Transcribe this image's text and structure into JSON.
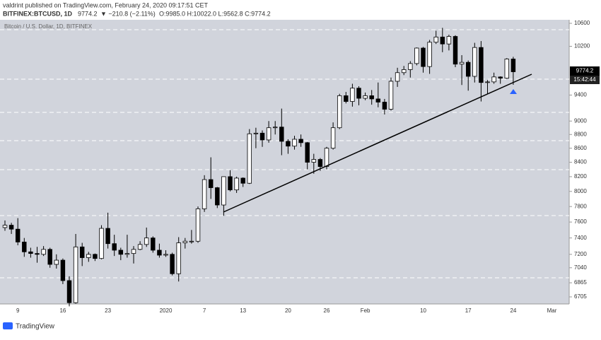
{
  "header": {
    "publisher": "valdrint published on TradingView.com, February 24, 2020 09:17:51 CET",
    "symbol": "BITFINEX:BTCUSD, 1D",
    "last": "9774.2",
    "change": "▼ −210.8 (−2.11%)",
    "ohlc": "O:9985.0 H:10022.0 L:9562.8 C:9774.2",
    "countdown": "15:42:44",
    "footer": "TradingView"
  },
  "chart_data": {
    "type": "candlestick",
    "title": "Bitcoin / U.S. Dollar, 1D, BITFINEX",
    "log_scale": true,
    "grid": false,
    "up_color": "#ffffff",
    "down_color": "#000000",
    "wick_color": "#000000",
    "ylim": [
      6626,
      10663
    ],
    "yticks": [
      10600,
      10200,
      9400,
      9000,
      8800,
      8600,
      8400,
      8200,
      8000,
      7800,
      7600,
      7400,
      7200,
      7040,
      6865,
      6705
    ],
    "categories": [
      null,
      null,
      "9",
      null,
      null,
      null,
      null,
      null,
      null,
      "16",
      null,
      null,
      null,
      null,
      null,
      null,
      "23",
      null,
      null,
      null,
      null,
      null,
      null,
      null,
      null,
      "2020",
      null,
      null,
      null,
      null,
      null,
      "7",
      null,
      null,
      null,
      null,
      null,
      "13",
      null,
      null,
      null,
      null,
      null,
      null,
      "20",
      null,
      null,
      null,
      null,
      null,
      "26",
      null,
      null,
      null,
      null,
      null,
      "Feb",
      null,
      null,
      null,
      null,
      null,
      null,
      null,
      null,
      "10",
      null,
      null,
      null,
      null,
      null,
      null,
      "17",
      null,
      null,
      null,
      null,
      null,
      null,
      "24",
      null,
      null,
      null,
      null,
      null,
      "Mar",
      null,
      null
    ],
    "open": [
      7530,
      7560,
      7510,
      7350,
      7230,
      7210,
      7200,
      7260,
      7080,
      7130,
      6890,
      6640,
      7290,
      7160,
      7200,
      7150,
      7520,
      7330,
      7250,
      7200,
      7210,
      7260,
      7320,
      7400,
      7250,
      7190,
      7200,
      6970,
      7340,
      7360,
      7360,
      7770,
      8160,
      8050,
      7820,
      8200,
      8020,
      8180,
      8110,
      8810,
      8820,
      8720,
      8900,
      8910,
      8700,
      8630,
      8730,
      8680,
      8400,
      8440,
      8340,
      8600,
      8900,
      9390,
      9300,
      9510,
      9350,
      9390,
      9340,
      9290,
      9180,
      9620,
      9760,
      9810,
      9910,
      10170,
      9860,
      10270,
      10360,
      10240,
      10370,
      9900,
      9930,
      9700,
      10180,
      9600,
      9610,
      9690,
      9670,
      9985.0,
      null,
      null,
      null,
      null,
      null,
      null,
      null,
      null
    ],
    "high": [
      7620,
      7590,
      7650,
      7400,
      7280,
      7290,
      7300,
      7280,
      7200,
      7150,
      6940,
      7450,
      7340,
      7230,
      7210,
      7560,
      7720,
      7440,
      7280,
      7440,
      7300,
      7360,
      7530,
      7420,
      7330,
      7250,
      7220,
      7410,
      7400,
      7500,
      7800,
      8220,
      8470,
      8060,
      8200,
      8290,
      8200,
      8190,
      8880,
      8900,
      8860,
      9000,
      9000,
      9190,
      8730,
      8780,
      8800,
      8690,
      8520,
      8460,
      8620,
      8980,
      9420,
      9450,
      9580,
      9540,
      9440,
      9480,
      9600,
      9340,
      9680,
      9840,
      9870,
      9950,
      10180,
      10190,
      10310,
      10470,
      10520,
      10400,
      10390,
      10050,
      9960,
      10260,
      10290,
      9640,
      9760,
      9700,
      10000,
      10022.0,
      null,
      null,
      null,
      null,
      null,
      null,
      null,
      null
    ],
    "low": [
      7490,
      7450,
      7310,
      7170,
      7160,
      7100,
      7180,
      7040,
      7030,
      6850,
      6600,
      6630,
      7060,
      7110,
      7120,
      7140,
      7270,
      7180,
      7130,
      7160,
      7090,
      7250,
      7290,
      7220,
      7160,
      7170,
      6950,
      6880,
      7270,
      7330,
      7340,
      7730,
      7900,
      7780,
      7680,
      8000,
      7980,
      8060,
      8100,
      8600,
      8620,
      8680,
      8800,
      8500,
      8520,
      8580,
      8620,
      8300,
      8240,
      8280,
      8300,
      8580,
      8880,
      9270,
      9220,
      9240,
      9320,
      9250,
      9210,
      9100,
      9160,
      9530,
      9720,
      9680,
      9880,
      9760,
      9740,
      10240,
      10100,
      10130,
      9850,
      9560,
      9470,
      9600,
      9300,
      9420,
      9580,
      9580,
      9660,
      9562.8,
      null,
      null,
      null,
      null,
      null,
      null,
      null,
      null
    ],
    "close": [
      7560,
      7510,
      7350,
      7230,
      7210,
      7200,
      7260,
      7080,
      7130,
      6890,
      6640,
      7290,
      7160,
      7200,
      7150,
      7520,
      7330,
      7250,
      7200,
      7210,
      7260,
      7320,
      7400,
      7250,
      7190,
      7200,
      6970,
      7340,
      7360,
      7360,
      7770,
      8160,
      8050,
      7820,
      8200,
      8020,
      8180,
      8110,
      8810,
      8820,
      8720,
      8900,
      8910,
      8700,
      8630,
      8730,
      8680,
      8400,
      8440,
      8340,
      8600,
      8900,
      9390,
      9300,
      9510,
      9350,
      9390,
      9340,
      9290,
      9180,
      9620,
      9760,
      9810,
      9910,
      10170,
      9860,
      10270,
      10360,
      10240,
      10370,
      9900,
      9930,
      9700,
      10180,
      9600,
      9610,
      9690,
      9670,
      9985,
      9774.2,
      null,
      null,
      null,
      null,
      null,
      null,
      null,
      null
    ]
  }
}
